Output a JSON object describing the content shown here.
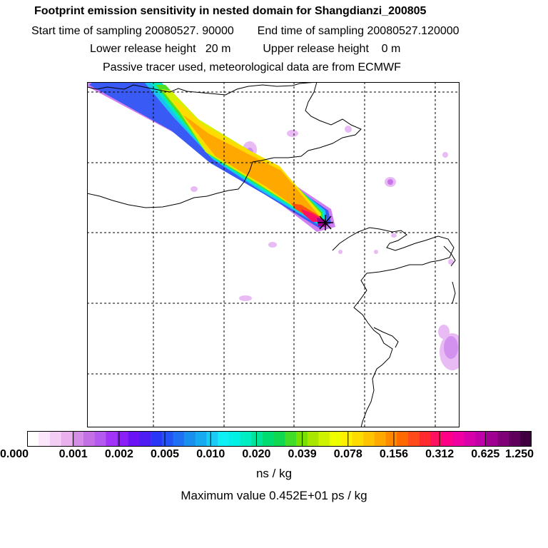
{
  "header": {
    "title": "Footprint emission sensitivity in nested domain for Shangdianzi_200805",
    "start_label": "Start time of sampling 20080527. 90000",
    "end_label": "End time of sampling 20080527.120000",
    "lower_label": "Lower release height   20 m",
    "upper_label": "Upper release height    0 m",
    "tracer_label": "Passive tracer used, meteorological data are from ECMWF"
  },
  "legend": {
    "ticks": [
      "0.000",
      "0.001",
      "0.002",
      "0.005",
      "0.010",
      "0.020",
      "0.039",
      "0.078",
      "0.156",
      "0.312",
      "0.625",
      "1.250"
    ],
    "colors": [
      "#ffffff",
      "#fbe6fb",
      "#f4cdf4",
      "#eab0ee",
      "#d58ee8",
      "#c36fe6",
      "#b45af0",
      "#a035f5",
      "#8a20f5",
      "#6a14f5",
      "#4d1df2",
      "#2a36f5",
      "#2352f5",
      "#1f70f2",
      "#1990ee",
      "#17aaf0",
      "#1ccaf5",
      "#0ef0f5",
      "#00f0e6",
      "#00ecc2",
      "#00e49a",
      "#00dc70",
      "#10d850",
      "#40dc28",
      "#78e000",
      "#a8e600",
      "#cff200",
      "#eeff00",
      "#fff000",
      "#ffdc00",
      "#ffc300",
      "#ffa800",
      "#ff8a00",
      "#ff6a00",
      "#ff4b1a",
      "#ff2a30",
      "#ff1060",
      "#ff0088",
      "#f000a0",
      "#d800a8",
      "#c000a8",
      "#a00092",
      "#800078",
      "#60005c",
      "#400040"
    ],
    "units": "ns / kg",
    "max_label": "Maximum value  0.452E+01 ps / kg"
  },
  "map": {
    "receptor_marker": "receptor-x-marker"
  }
}
